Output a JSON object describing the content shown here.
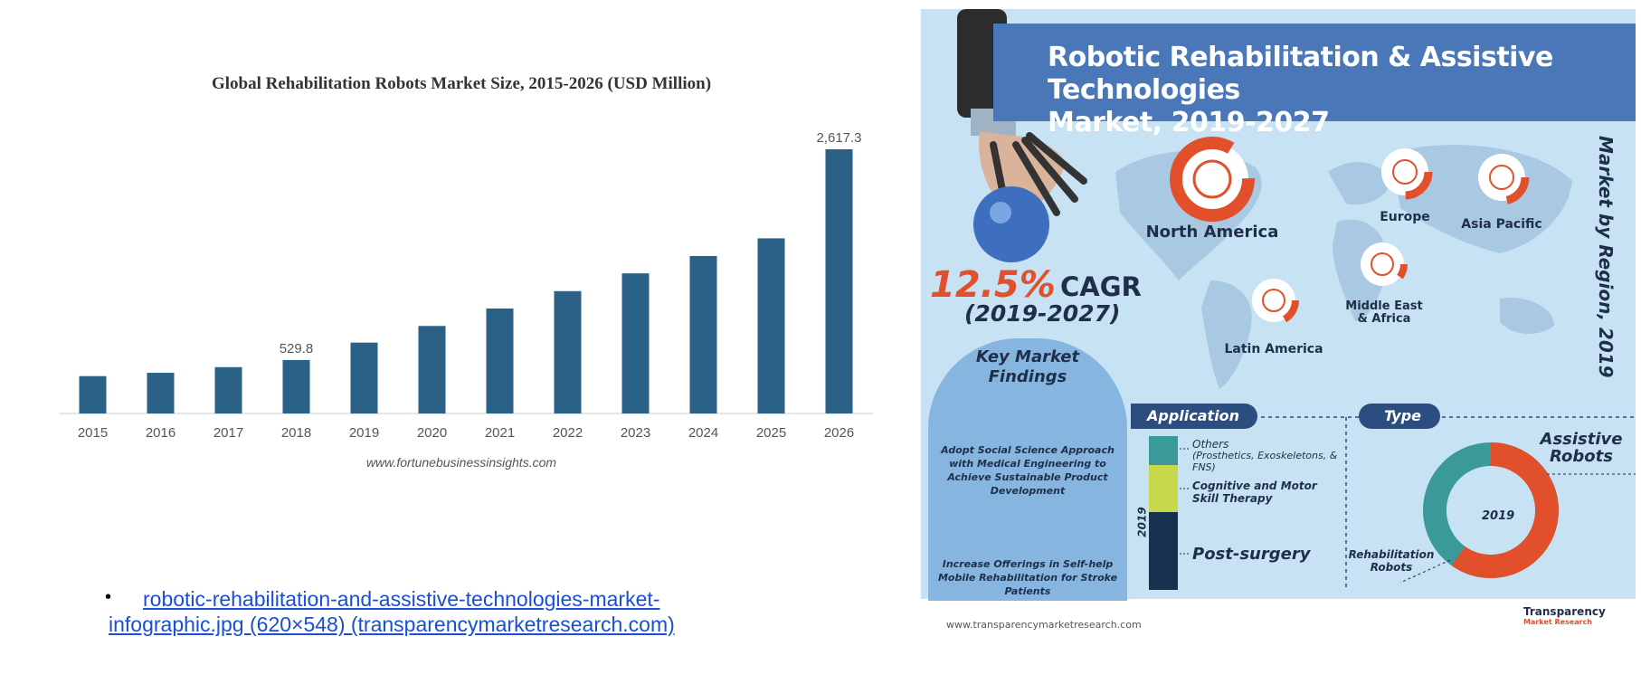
{
  "chart_data": {
    "type": "bar",
    "title": "Global Rehabilitation Robots Market Size, 2015-2026 (USD Million)",
    "categories": [
      "2015",
      "2016",
      "2017",
      "2018",
      "2019",
      "2020",
      "2021",
      "2022",
      "2023",
      "2024",
      "2025",
      "2026"
    ],
    "values": [
      370,
      403,
      459,
      529.8,
      702,
      867,
      1040,
      1212,
      1388,
      1560,
      1735,
      2617.3
    ],
    "data_labels": {
      "3": "529.8",
      "11": "2,617.3"
    },
    "color": "#2b6187",
    "ylim": [
      0,
      2617.3
    ],
    "grid": false,
    "source": "www.fortunebusinessinsights.com"
  },
  "link": {
    "bullet": "•",
    "text": "robotic-rehabilitation-and-assistive-technologies-market-infographic.jpg (620×548) (transparencymarketresearch.com)"
  },
  "infographic": {
    "title_line1": "Robotic Rehabilitation & Assistive Technologies",
    "title_line2": "Market, 2019-2027",
    "side_title": "Market by Region, 2019",
    "cagr_value": "12.5%",
    "cagr_label": "CAGR",
    "cagr_period": "(2019-2027)",
    "regions": {
      "north_america": "North America",
      "europe": "Europe",
      "asia_pacific": "Asia Pacific",
      "middle_east": "Middle East & Africa",
      "latin_america": "Latin America"
    },
    "findings": {
      "title": "Key Market Findings",
      "item1": "Adopt Social Science Approach with Medical Engineering to Achieve Sustainable Product Development",
      "item2": "Increase Offerings in Self-help Mobile Rehabilitation for Stroke Patients"
    },
    "application": {
      "title": "Application",
      "year": "2019",
      "others": "Others",
      "others_detail": "(Prosthetics, Exoskeletons, & FNS)",
      "cognitive": "Cognitive and Motor Skill Therapy",
      "post_surgery": "Post-surgery",
      "colors": {
        "others": "#3a9a9a",
        "cognitive": "#c7d84a",
        "post_surgery": "#16324f"
      }
    },
    "type": {
      "title": "Type",
      "year": "2019",
      "assistive": "Assistive Robots",
      "rehab": "Rehabilitation Robots",
      "colors": {
        "assistive": "#e1502b",
        "rehab": "#3a9a9a"
      }
    },
    "url": "www.transparencymarketresearch.com",
    "logo": "Transparency",
    "logo_sub": "Market Research"
  }
}
